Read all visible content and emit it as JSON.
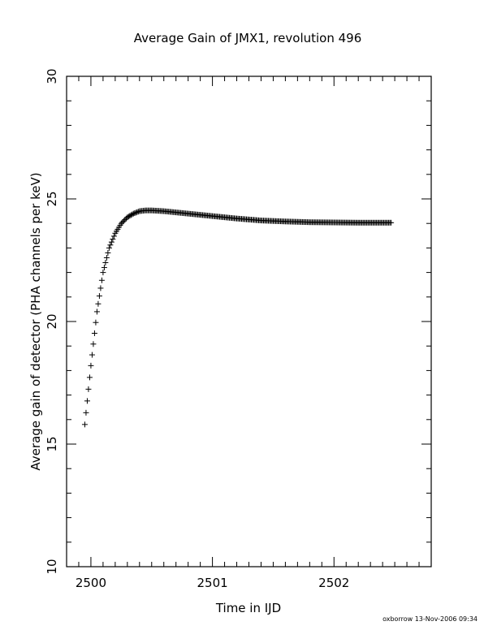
{
  "chart_data": {
    "type": "scatter",
    "title": "Average Gain of JMX1, revolution 496",
    "xlabel": "Time in IJD",
    "ylabel": "Average gain of detector (PHA channels per keV)",
    "xlim": [
      2499.8,
      2502.8
    ],
    "ylim": [
      10,
      30
    ],
    "x_ticks": [
      2500,
      2501,
      2502
    ],
    "x_tick_labels": [
      "2500",
      "2501",
      "2502"
    ],
    "y_ticks": [
      10,
      15,
      20,
      25,
      30
    ],
    "y_tick_labels": [
      "10",
      "15",
      "20",
      "25",
      "30"
    ],
    "x_minor_step": 0.1,
    "y_minor_step": 1,
    "grid": false,
    "marker": "plus",
    "series": [
      {
        "color": "#000000",
        "x": [
          2499.95,
          2500.0,
          2500.05,
          2500.1,
          2500.15,
          2500.2,
          2500.25,
          2500.3,
          2500.35,
          2500.4,
          2500.45,
          2500.5,
          2500.6,
          2500.7,
          2500.8,
          2500.9,
          2501.0,
          2501.2,
          2501.4,
          2501.6,
          2501.8,
          2502.0,
          2502.2,
          2502.47
        ],
        "y": [
          15.8,
          18.2,
          20.4,
          22.0,
          23.0,
          23.6,
          24.0,
          24.25,
          24.4,
          24.5,
          24.53,
          24.53,
          24.5,
          24.45,
          24.4,
          24.35,
          24.3,
          24.2,
          24.12,
          24.08,
          24.05,
          24.04,
          24.03,
          24.03
        ]
      }
    ]
  },
  "footer": {
    "credit": "oxborrow 13-Nov-2006 09:34"
  }
}
